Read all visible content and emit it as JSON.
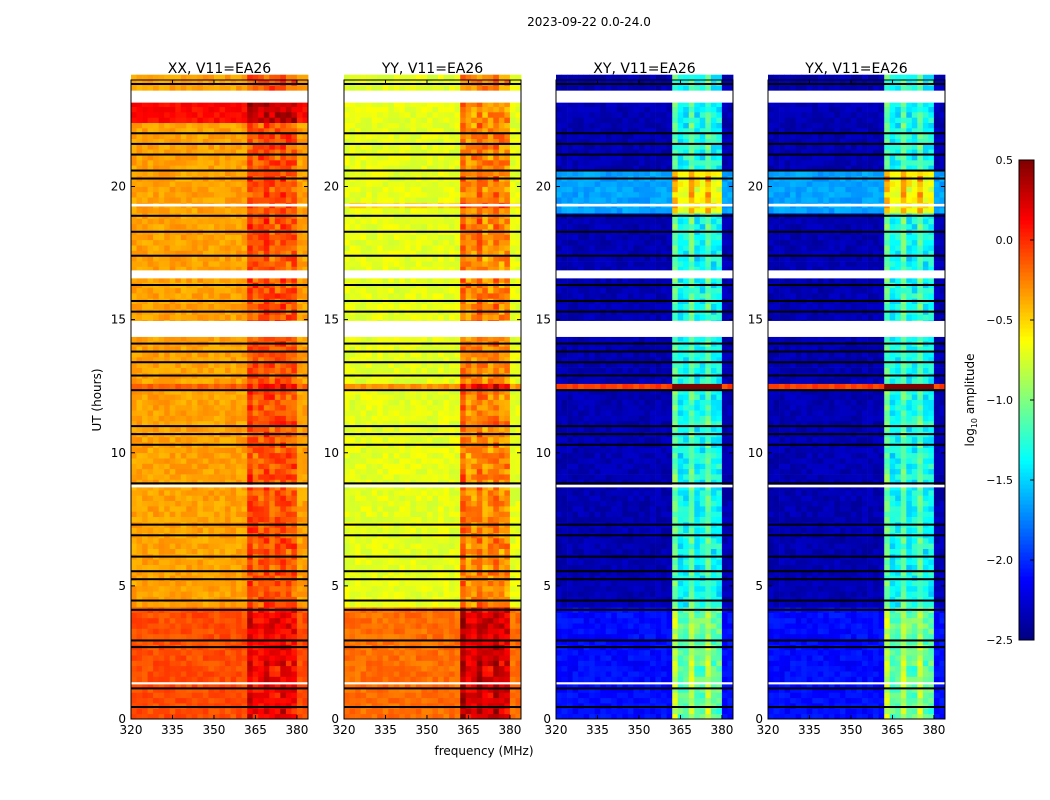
{
  "chart_data": {
    "type": "heatmap",
    "title": "2023-09-22 0.0-24.0",
    "xlabel": "frequency (MHz)",
    "ylabel": "UT (hours)",
    "xlim": [
      320,
      384
    ],
    "ylim": [
      0,
      24
    ],
    "xticks": [
      "320",
      "335",
      "350",
      "365",
      "380"
    ],
    "yticks": [
      "0",
      "5",
      "10",
      "15",
      "20"
    ],
    "xtick_values": [
      320,
      335,
      350,
      365,
      380
    ],
    "ytick_values": [
      0,
      5,
      10,
      15,
      20
    ],
    "colorbar": {
      "label": "log10 amplitude",
      "label_main": "log",
      "label_sub": "10",
      "label_rest": " amplitude",
      "range": [
        -2.5,
        0.5
      ],
      "ticks": [
        "0.5",
        "0.0",
        "−0.5",
        "−1.0",
        "−1.5",
        "−2.0",
        "−2.5"
      ],
      "tick_values": [
        0.5,
        0.0,
        -0.5,
        -1.0,
        -1.5,
        -2.0,
        -2.5
      ],
      "colormap": "jet"
    },
    "rfi_band_mhz": [
      361,
      380
    ],
    "flagged_hours_white": [
      [
        14.35,
        14.95
      ],
      [
        16.55,
        16.85
      ],
      [
        19.25,
        19.35
      ],
      [
        23.15,
        23.6
      ],
      [
        1.3,
        1.38
      ],
      [
        8.7,
        8.8
      ]
    ],
    "flagged_hours_black": [
      0.45,
      1.15,
      2.7,
      2.95,
      4.1,
      4.45,
      5.25,
      5.55,
      6.1,
      6.9,
      7.3,
      8.85,
      10.3,
      10.7,
      11.0,
      12.35,
      12.9,
      13.4,
      13.8,
      14.1,
      15.3,
      15.7,
      16.3,
      17.4,
      18.3,
      18.9,
      20.3,
      20.6,
      21.2,
      21.6,
      22.0,
      23.85
    ],
    "panels": [
      {
        "title": "XX, V11=EA26",
        "segments": [
          {
            "from": 0,
            "to": 4.2,
            "level": -0.1
          },
          {
            "from": 4.2,
            "to": 24,
            "level": -0.35
          }
        ],
        "rfi_boost": 0.25,
        "hot_rows": [
          [
            22.2,
            23.0,
            0.45
          ],
          [
            12.2,
            12.5,
            0.2
          ]
        ]
      },
      {
        "title": "YY, V11=EA26",
        "segments": [
          {
            "from": 0,
            "to": 4.2,
            "level": -0.2
          },
          {
            "from": 4.2,
            "to": 24,
            "level": -0.7
          }
        ],
        "rfi_boost": 0.45,
        "hot_rows": [
          [
            12.2,
            12.5,
            0.4
          ],
          [
            19.0,
            19.3,
            0.2
          ]
        ]
      },
      {
        "title": "XY, V11=EA26",
        "segments": [
          {
            "from": 0,
            "to": 4.2,
            "level": -2.1
          },
          {
            "from": 4.2,
            "to": 24,
            "level": -2.35
          }
        ],
        "rfi_boost": 1.1,
        "hot_rows": [
          [
            12.2,
            12.5,
            2.3
          ],
          [
            18.8,
            20.5,
            0.7
          ]
        ]
      },
      {
        "title": "YX, V11=EA26",
        "segments": [
          {
            "from": 0,
            "to": 4.2,
            "level": -2.1
          },
          {
            "from": 4.2,
            "to": 24,
            "level": -2.35
          }
        ],
        "rfi_boost": 1.1,
        "hot_rows": [
          [
            12.2,
            12.5,
            2.3
          ],
          [
            18.8,
            20.5,
            0.7
          ]
        ]
      }
    ]
  }
}
